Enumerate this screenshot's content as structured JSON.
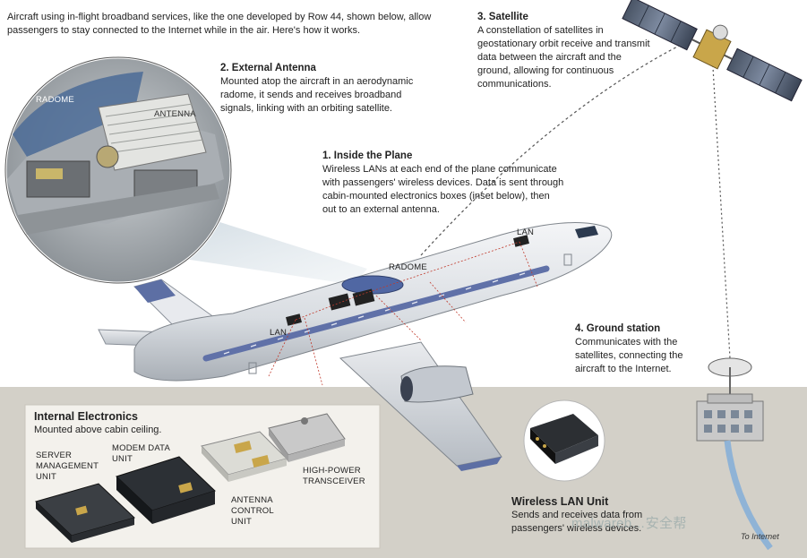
{
  "intro": "Aircraft using in-flight broadband services, like the one developed by Row 44, shown below, allow passengers to stay connected to the Internet while in the air. Here's how it works.",
  "satellite": {
    "heading": "3. Satellite",
    "body": "A constellation of satellites in geostationary orbit receive and transmit data between the aircraft and the ground, allowing for continuous communications."
  },
  "external_antenna": {
    "heading": "2. External Antenna",
    "body": "Mounted atop the aircraft in an aerodynamic radome, it sends and receives broadband signals, linking with an orbiting satellite."
  },
  "inside_plane": {
    "heading": "1. Inside the Plane",
    "body": "Wireless LANs at each end of the plane communicate with passengers' wireless devices. Data is sent through cabin-mounted electronics boxes (inset below), then out to an external antenna."
  },
  "ground_station": {
    "heading": "4. Ground station",
    "body": "Communicates with the satellites, connecting the aircraft to the Internet."
  },
  "internal_electronics": {
    "heading": "Internal Electronics",
    "subheading": "Mounted above cabin ceiling.",
    "server": "SERVER MANAGEMENT UNIT",
    "modem": "MODEM DATA UNIT",
    "antenna_control": "ANTENNA CONTROL UNIT",
    "transceiver": "HIGH-POWER TRANSCEIVER"
  },
  "wireless_lan_unit": {
    "heading": "Wireless LAN Unit",
    "body": "Sends and receives data from passengers' wireless devices."
  },
  "labels": {
    "radome_inset": "RADOME",
    "antenna_inset": "ANTENNA",
    "radome_plane": "RADOME",
    "lan_front": "LAN",
    "lan_rear": "LAN",
    "to_internet": "To Internet"
  },
  "watermark": "malwareb…安全帮"
}
